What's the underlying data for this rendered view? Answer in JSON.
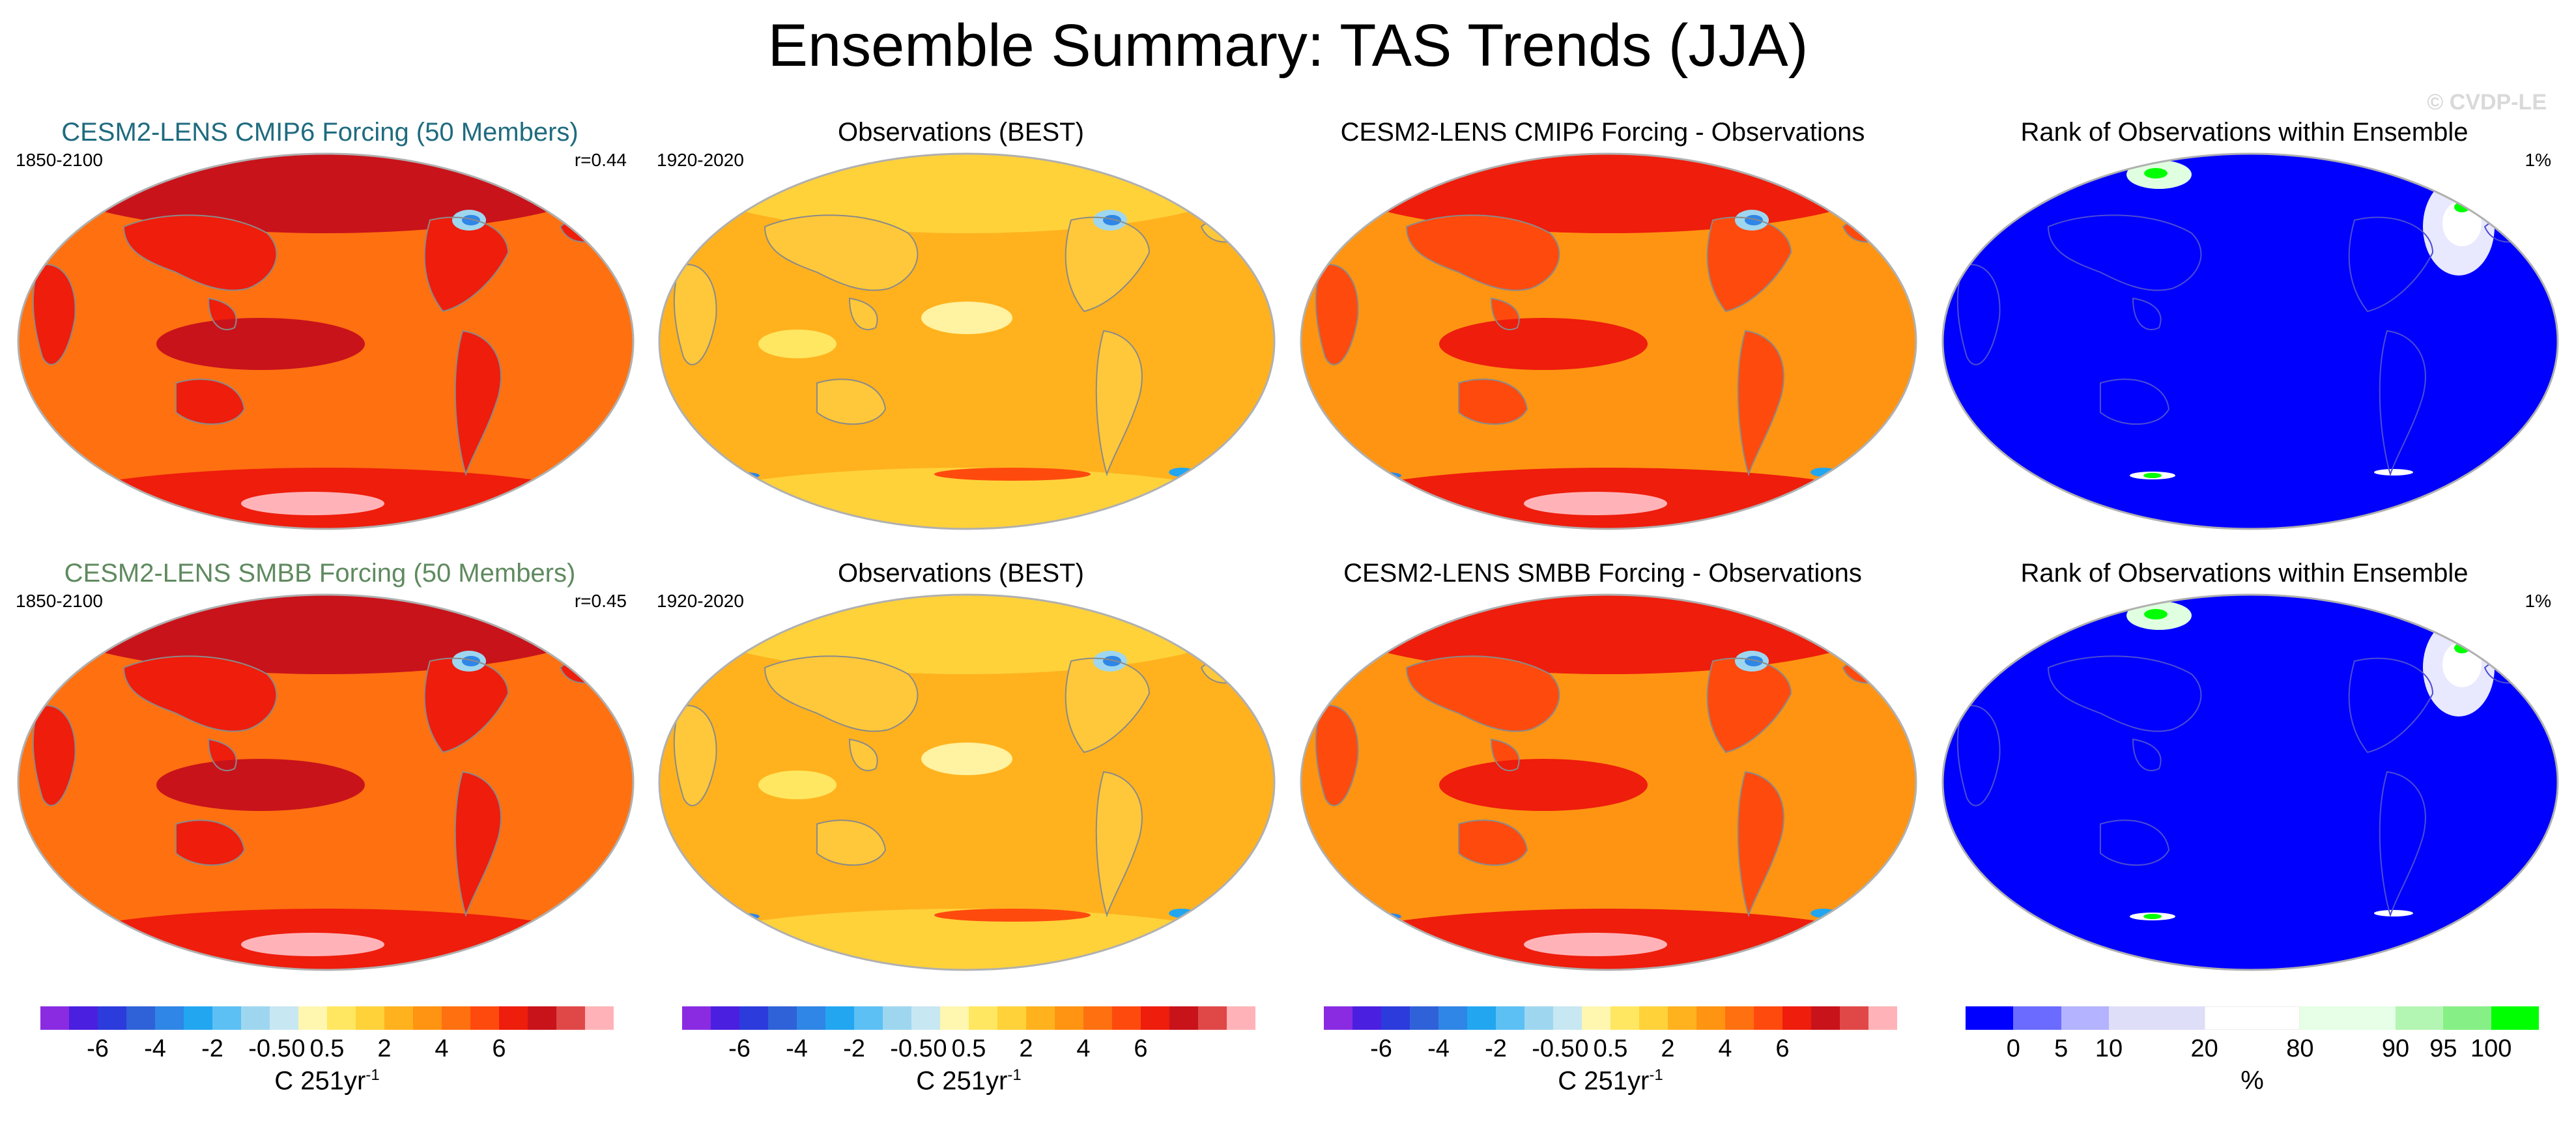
{
  "figure": {
    "title": "Ensemble Summary: TAS Trends (JJA)",
    "copyright": "© CVDP-LE"
  },
  "chart_data": [
    {
      "type": "heatmap",
      "title": "CESM2-LENS CMIP6 Forcing (50 Members)",
      "title_color": "#1f6b7f",
      "left_label": "1850-2100",
      "right_label": "r=0.44",
      "field": "ensemble-mean",
      "colorbar": "trend"
    },
    {
      "type": "heatmap",
      "title": "Observations (BEST)",
      "title_color": "#000000",
      "left_label": "1920-2020",
      "right_label": "",
      "field": "observations",
      "colorbar": "trend"
    },
    {
      "type": "heatmap",
      "title": "CESM2-LENS CMIP6 Forcing - Observations",
      "title_color": "#000000",
      "left_label": "",
      "right_label": "",
      "field": "difference",
      "colorbar": "trend"
    },
    {
      "type": "heatmap",
      "title": "Rank of Observations within Ensemble",
      "title_color": "#000000",
      "left_label": "",
      "right_label": "1%",
      "field": "rank",
      "colorbar": "rank"
    },
    {
      "type": "heatmap",
      "title": "CESM2-LENS SMBB Forcing (50 Members)",
      "title_color": "#5f8a5f",
      "left_label": "1850-2100",
      "right_label": "r=0.45",
      "field": "ensemble-mean",
      "colorbar": "trend"
    },
    {
      "type": "heatmap",
      "title": "Observations (BEST)",
      "title_color": "#000000",
      "left_label": "1920-2020",
      "right_label": "",
      "field": "observations",
      "colorbar": "trend"
    },
    {
      "type": "heatmap",
      "title": "CESM2-LENS SMBB Forcing - Observations",
      "title_color": "#000000",
      "left_label": "",
      "right_label": "",
      "field": "difference",
      "colorbar": "trend"
    },
    {
      "type": "heatmap",
      "title": "Rank of Observations within Ensemble",
      "title_color": "#000000",
      "left_label": "",
      "right_label": "1%",
      "field": "rank",
      "colorbar": "rank"
    }
  ],
  "colorbars": {
    "trend": {
      "colors": [
        "#8a2be2",
        "#4b1fe0",
        "#2b3bdc",
        "#2f62d8",
        "#2f86e6",
        "#22a6f0",
        "#5cc0f4",
        "#9ed6f0",
        "#c7e7f2",
        "#fff6b0",
        "#ffe761",
        "#ffd23a",
        "#ffb21e",
        "#ff9412",
        "#ff7010",
        "#ff4a0e",
        "#ee1d0c",
        "#c8131b",
        "#e04848",
        "#ffb3b8"
      ],
      "ticks": [
        "-6",
        "-4",
        "-2",
        "-0.5",
        "0",
        "0.5",
        "2",
        "4",
        "6"
      ],
      "tick_boundaries": [
        2,
        4,
        6,
        8,
        9,
        10,
        12,
        14,
        16
      ],
      "units": "C 251yr",
      "units_exponent": "-1"
    },
    "rank": {
      "colors": [
        "#0000ff",
        "#6b6bff",
        "#b3b3ff",
        "#dedef9",
        "#ffffff",
        "#e6ffe6",
        "#b3f5b3",
        "#86f086",
        "#00ff00"
      ],
      "widths": [
        1,
        1,
        1,
        2,
        2,
        2,
        1,
        1,
        1
      ],
      "ticks": [
        "0",
        "5",
        "10",
        "20",
        "80",
        "90",
        "95",
        "100"
      ],
      "tick_boundaries": [
        1,
        2,
        3,
        5,
        7,
        9,
        10,
        11
      ],
      "units": "%"
    }
  }
}
